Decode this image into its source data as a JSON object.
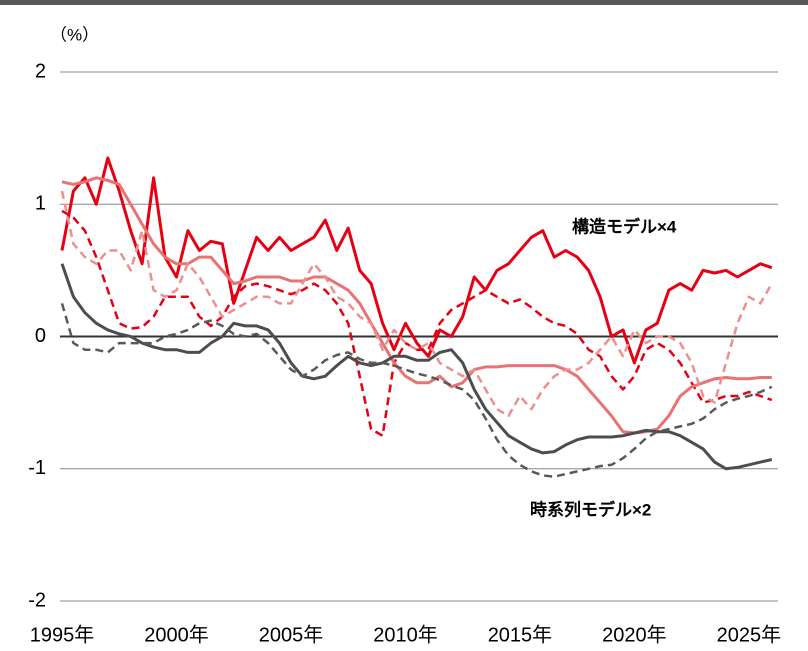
{
  "chart_data": {
    "type": "line",
    "unit_label": "（%）",
    "annotations": [
      {
        "text": "構造モデル×4",
        "color": "#e60012"
      },
      {
        "text": "時系列モデル×2",
        "color": "#595959"
      }
    ],
    "x": [
      1995,
      1995.5,
      1996,
      1996.5,
      1997,
      1997.5,
      1998,
      1998.5,
      1999,
      1999.5,
      2000,
      2000.5,
      2001,
      2001.5,
      2002,
      2002.5,
      2003,
      2003.5,
      2004,
      2004.5,
      2005,
      2005.5,
      2006,
      2006.5,
      2007,
      2007.5,
      2008,
      2008.5,
      2009,
      2009.5,
      2010,
      2010.5,
      2011,
      2011.5,
      2012,
      2012.5,
      2013,
      2013.5,
      2014,
      2014.5,
      2015,
      2015.5,
      2016,
      2016.5,
      2017,
      2017.5,
      2018,
      2018.5,
      2019,
      2019.5,
      2020,
      2020.5,
      2021,
      2021.5,
      2022,
      2022.5,
      2023,
      2023.5,
      2024,
      2024.5,
      2025,
      2025.5,
      2026
    ],
    "series": [
      {
        "color": "#e60012",
        "style": "solid",
        "width": 3,
        "values": [
          0.65,
          1.1,
          1.2,
          1.0,
          1.35,
          1.1,
          0.8,
          0.55,
          1.2,
          0.6,
          0.45,
          0.8,
          0.65,
          0.72,
          0.7,
          0.25,
          0.5,
          0.75,
          0.65,
          0.75,
          0.65,
          0.7,
          0.75,
          0.88,
          0.65,
          0.82,
          0.5,
          0.4,
          0.1,
          -0.1,
          0.1,
          -0.05,
          -0.15,
          0.05,
          0.0,
          0.15,
          0.45,
          0.35,
          0.5,
          0.55,
          0.65,
          0.75,
          0.8,
          0.6,
          0.65,
          0.6,
          0.5,
          0.3,
          0.0,
          0.05,
          -0.2,
          0.05,
          0.1,
          0.35,
          0.4,
          0.35,
          0.5,
          0.48,
          0.5,
          0.45,
          0.5,
          0.55,
          0.52
        ]
      },
      {
        "color": "#e60012",
        "style": "dashed",
        "width": 2.5,
        "values": [
          0.95,
          0.9,
          0.8,
          0.6,
          0.35,
          0.1,
          0.06,
          0.07,
          0.15,
          0.3,
          0.3,
          0.3,
          0.15,
          0.08,
          0.15,
          0.3,
          0.38,
          0.4,
          0.38,
          0.35,
          0.32,
          0.35,
          0.4,
          0.35,
          0.25,
          0.1,
          -0.3,
          -0.7,
          -0.75,
          -0.2,
          -0.05,
          -0.1,
          -0.1,
          0.1,
          0.2,
          0.25,
          0.3,
          0.35,
          0.3,
          0.25,
          0.28,
          0.22,
          0.15,
          0.1,
          0.08,
          0.02,
          -0.1,
          -0.15,
          -0.3,
          -0.4,
          -0.3,
          -0.1,
          -0.05,
          -0.1,
          -0.2,
          -0.35,
          -0.5,
          -0.48,
          -0.45,
          -0.45,
          -0.42,
          -0.45,
          -0.48
        ]
      },
      {
        "color": "#e87373",
        "style": "solid",
        "width": 3,
        "values": [
          1.17,
          1.15,
          1.17,
          1.2,
          1.18,
          1.15,
          1.0,
          0.85,
          0.7,
          0.6,
          0.55,
          0.55,
          0.6,
          0.6,
          0.5,
          0.4,
          0.42,
          0.45,
          0.45,
          0.45,
          0.42,
          0.42,
          0.45,
          0.45,
          0.4,
          0.35,
          0.25,
          0.1,
          -0.05,
          -0.2,
          -0.3,
          -0.35,
          -0.35,
          -0.3,
          -0.38,
          -0.35,
          -0.25,
          -0.23,
          -0.23,
          -0.22,
          -0.22,
          -0.22,
          -0.22,
          -0.22,
          -0.25,
          -0.3,
          -0.4,
          -0.5,
          -0.6,
          -0.72,
          -0.73,
          -0.72,
          -0.7,
          -0.6,
          -0.45,
          -0.38,
          -0.35,
          -0.32,
          -0.31,
          -0.32,
          -0.32,
          -0.31,
          -0.31
        ]
      },
      {
        "color": "#ec8f8f",
        "style": "dashed",
        "width": 2.5,
        "values": [
          1.1,
          0.7,
          0.6,
          0.55,
          0.65,
          0.65,
          0.5,
          0.8,
          0.35,
          0.3,
          0.35,
          0.55,
          0.45,
          0.3,
          0.15,
          0.2,
          0.25,
          0.3,
          0.3,
          0.25,
          0.25,
          0.4,
          0.55,
          0.45,
          0.3,
          0.25,
          0.15,
          0.1,
          -0.1,
          0.05,
          -0.05,
          -0.1,
          -0.05,
          -0.2,
          -0.25,
          -0.3,
          -0.25,
          -0.4,
          -0.55,
          -0.6,
          -0.45,
          -0.55,
          -0.4,
          -0.3,
          -0.25,
          -0.25,
          -0.2,
          -0.1,
          0.0,
          -0.15,
          0.05,
          -0.05,
          0.0,
          0.0,
          -0.05,
          -0.2,
          -0.45,
          -0.5,
          -0.2,
          0.1,
          0.3,
          0.25,
          0.4
        ]
      },
      {
        "color": "#4d4d4d",
        "style": "solid",
        "width": 3,
        "values": [
          0.55,
          0.3,
          0.18,
          0.1,
          0.05,
          0.02,
          0.0,
          -0.05,
          -0.08,
          -0.1,
          -0.1,
          -0.12,
          -0.12,
          -0.05,
          0.0,
          0.1,
          0.08,
          0.08,
          0.05,
          -0.05,
          -0.2,
          -0.3,
          -0.32,
          -0.3,
          -0.22,
          -0.15,
          -0.2,
          -0.22,
          -0.2,
          -0.15,
          -0.15,
          -0.18,
          -0.18,
          -0.12,
          -0.1,
          -0.2,
          -0.4,
          -0.55,
          -0.65,
          -0.75,
          -0.8,
          -0.85,
          -0.88,
          -0.87,
          -0.82,
          -0.78,
          -0.76,
          -0.76,
          -0.76,
          -0.75,
          -0.73,
          -0.71,
          -0.72,
          -0.72,
          -0.75,
          -0.8,
          -0.85,
          -0.95,
          -1.0,
          -0.99,
          -0.97,
          -0.95,
          -0.93
        ]
      },
      {
        "color": "#595959",
        "style": "dashed",
        "width": 2.5,
        "values": [
          0.25,
          -0.05,
          -0.1,
          -0.1,
          -0.12,
          -0.05,
          -0.05,
          -0.05,
          -0.05,
          0.0,
          0.02,
          0.05,
          0.1,
          0.12,
          0.08,
          0.02,
          0.0,
          0.02,
          -0.05,
          -0.15,
          -0.25,
          -0.3,
          -0.25,
          -0.18,
          -0.14,
          -0.12,
          -0.17,
          -0.2,
          -0.2,
          -0.22,
          -0.25,
          -0.28,
          -0.3,
          -0.33,
          -0.37,
          -0.4,
          -0.48,
          -0.62,
          -0.78,
          -0.9,
          -0.97,
          -1.02,
          -1.05,
          -1.06,
          -1.04,
          -1.02,
          -1.0,
          -0.98,
          -0.97,
          -0.92,
          -0.85,
          -0.77,
          -0.72,
          -0.7,
          -0.68,
          -0.66,
          -0.62,
          -0.55,
          -0.5,
          -0.47,
          -0.45,
          -0.42,
          -0.38
        ]
      }
    ],
    "xlim": [
      1995,
      2026.27
    ],
    "xticks": [
      {
        "value": 1995,
        "label": "1995年"
      },
      {
        "value": 2000,
        "label": "2000年"
      },
      {
        "value": 2005,
        "label": "2005年"
      },
      {
        "value": 2010,
        "label": "2010年"
      },
      {
        "value": 2015,
        "label": "2015年"
      },
      {
        "value": 2020,
        "label": "2020年"
      },
      {
        "value": 2025,
        "label": "2025年"
      }
    ],
    "ylim": [
      -2,
      2
    ],
    "yticks": [
      -2,
      -1,
      0,
      1,
      2
    ],
    "grid": true
  }
}
